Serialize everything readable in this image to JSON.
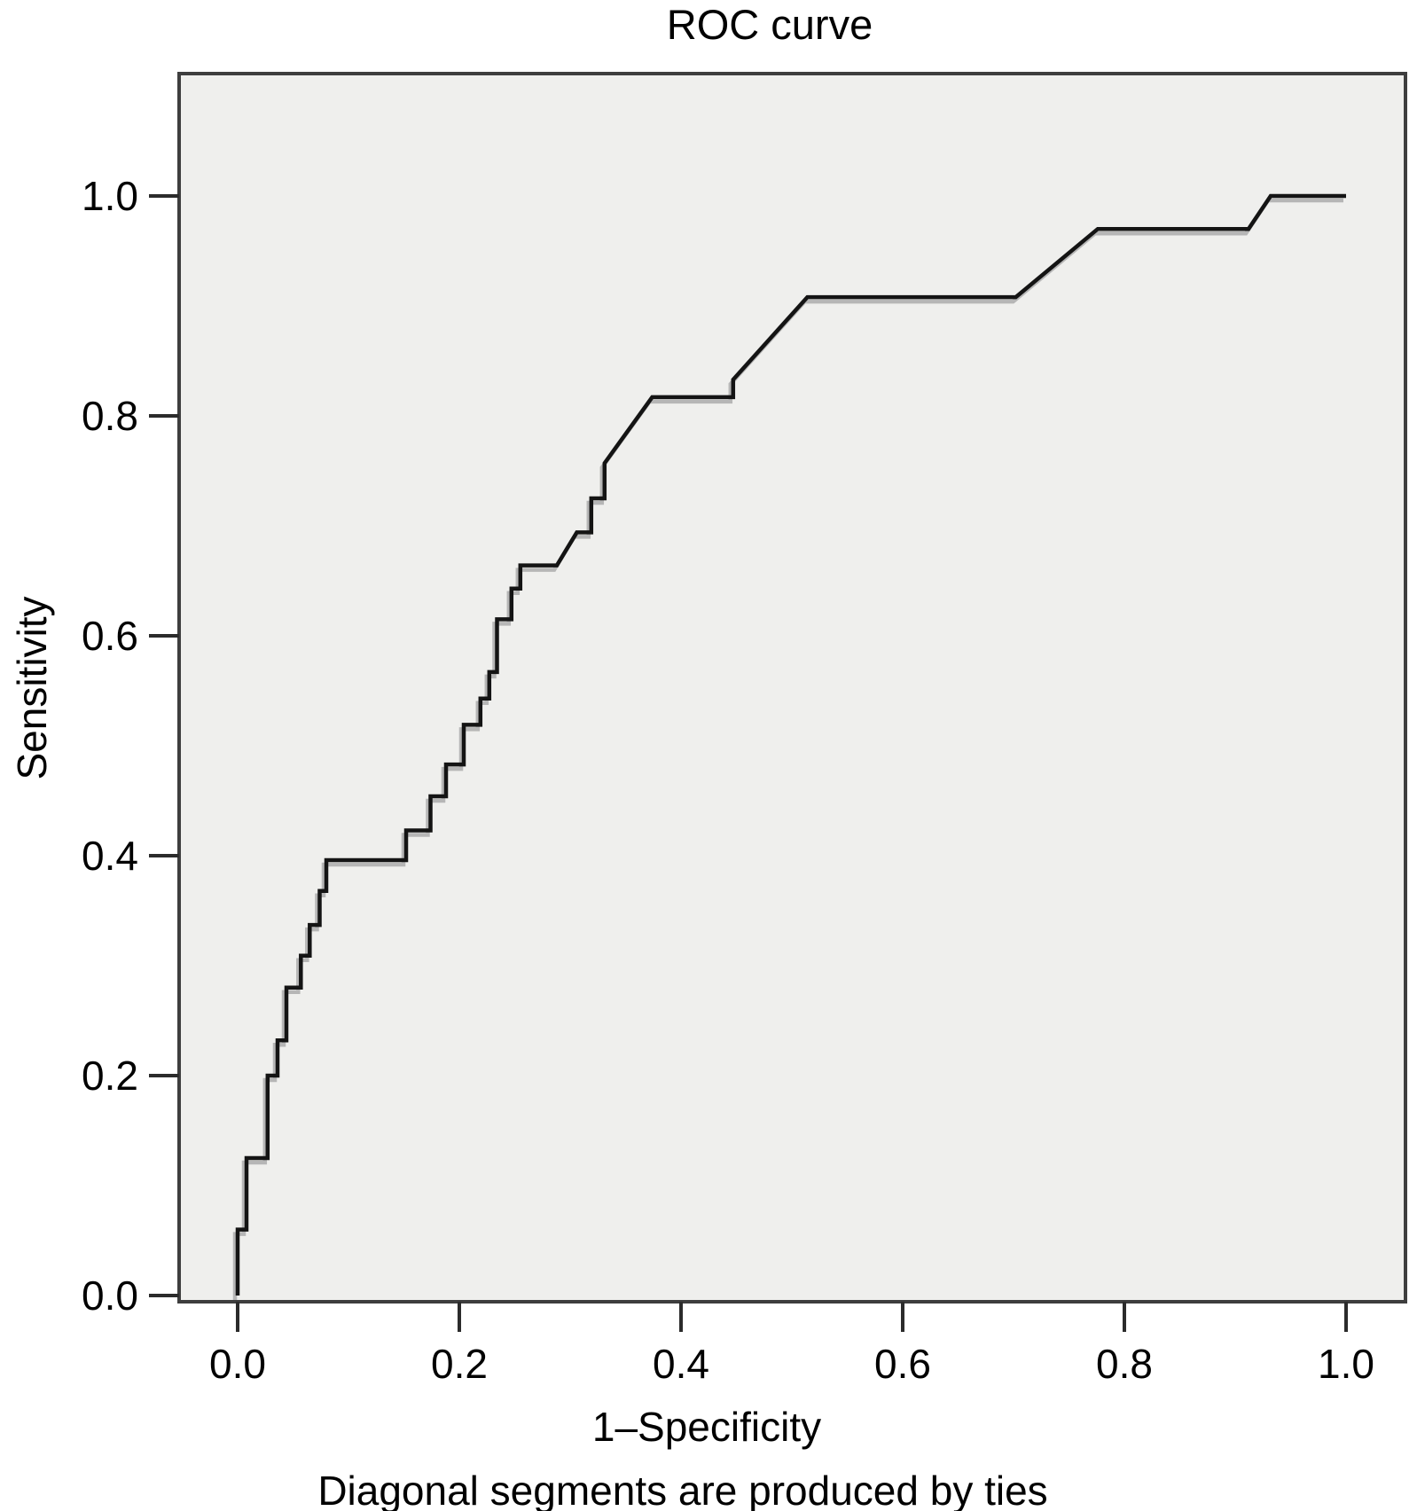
{
  "colors": {
    "background": "#ffffff",
    "plot_background": "#efefed",
    "frame_stroke": "#3e3e3e",
    "tick_stroke": "#2b2b2b",
    "curve_stroke": "#141414",
    "curve_shadow": "#a8a8a8",
    "text": "#000000"
  },
  "chart_data": {
    "type": "line",
    "subtype": "roc_step_curve",
    "title": "ROC curve",
    "xlabel": "1–Specificity",
    "ylabel": "Sensitivity",
    "caption": "Diagonal segments are produced by ties",
    "xlim": [
      0.0,
      1.0
    ],
    "ylim": [
      0.0,
      1.0
    ],
    "x_ticks": [
      0.0,
      0.2,
      0.4,
      0.6,
      0.8,
      1.0
    ],
    "y_ticks": [
      0.0,
      0.2,
      0.4,
      0.6,
      0.8,
      1.0
    ],
    "tick_decimals": 1,
    "grid": false,
    "legend_position": "none",
    "series": [
      {
        "name": "ROC curve",
        "points": [
          [
            0.0,
            0.0
          ],
          [
            0.0,
            0.06
          ],
          [
            0.008,
            0.06
          ],
          [
            0.008,
            0.125
          ],
          [
            0.027,
            0.125
          ],
          [
            0.027,
            0.2
          ],
          [
            0.036,
            0.2
          ],
          [
            0.036,
            0.232
          ],
          [
            0.044,
            0.232
          ],
          [
            0.044,
            0.28
          ],
          [
            0.057,
            0.28
          ],
          [
            0.057,
            0.309
          ],
          [
            0.065,
            0.309
          ],
          [
            0.065,
            0.337
          ],
          [
            0.074,
            0.337
          ],
          [
            0.074,
            0.368
          ],
          [
            0.08,
            0.368
          ],
          [
            0.08,
            0.396
          ],
          [
            0.152,
            0.396
          ],
          [
            0.152,
            0.423
          ],
          [
            0.174,
            0.423
          ],
          [
            0.174,
            0.454
          ],
          [
            0.188,
            0.454
          ],
          [
            0.188,
            0.483
          ],
          [
            0.204,
            0.483
          ],
          [
            0.204,
            0.519
          ],
          [
            0.219,
            0.519
          ],
          [
            0.219,
            0.543
          ],
          [
            0.227,
            0.543
          ],
          [
            0.227,
            0.567
          ],
          [
            0.234,
            0.567
          ],
          [
            0.234,
            0.615
          ],
          [
            0.247,
            0.615
          ],
          [
            0.247,
            0.643
          ],
          [
            0.255,
            0.643
          ],
          [
            0.255,
            0.664
          ],
          [
            0.288,
            0.664
          ],
          [
            0.306,
            0.694
          ],
          [
            0.319,
            0.694
          ],
          [
            0.319,
            0.725
          ],
          [
            0.331,
            0.725
          ],
          [
            0.331,
            0.757
          ],
          [
            0.374,
            0.817
          ],
          [
            0.447,
            0.817
          ],
          [
            0.447,
            0.833
          ],
          [
            0.514,
            0.908
          ],
          [
            0.702,
            0.908
          ],
          [
            0.776,
            0.97
          ],
          [
            0.912,
            0.97
          ],
          [
            0.932,
            1.0
          ],
          [
            1.0,
            1.0
          ]
        ]
      }
    ]
  }
}
